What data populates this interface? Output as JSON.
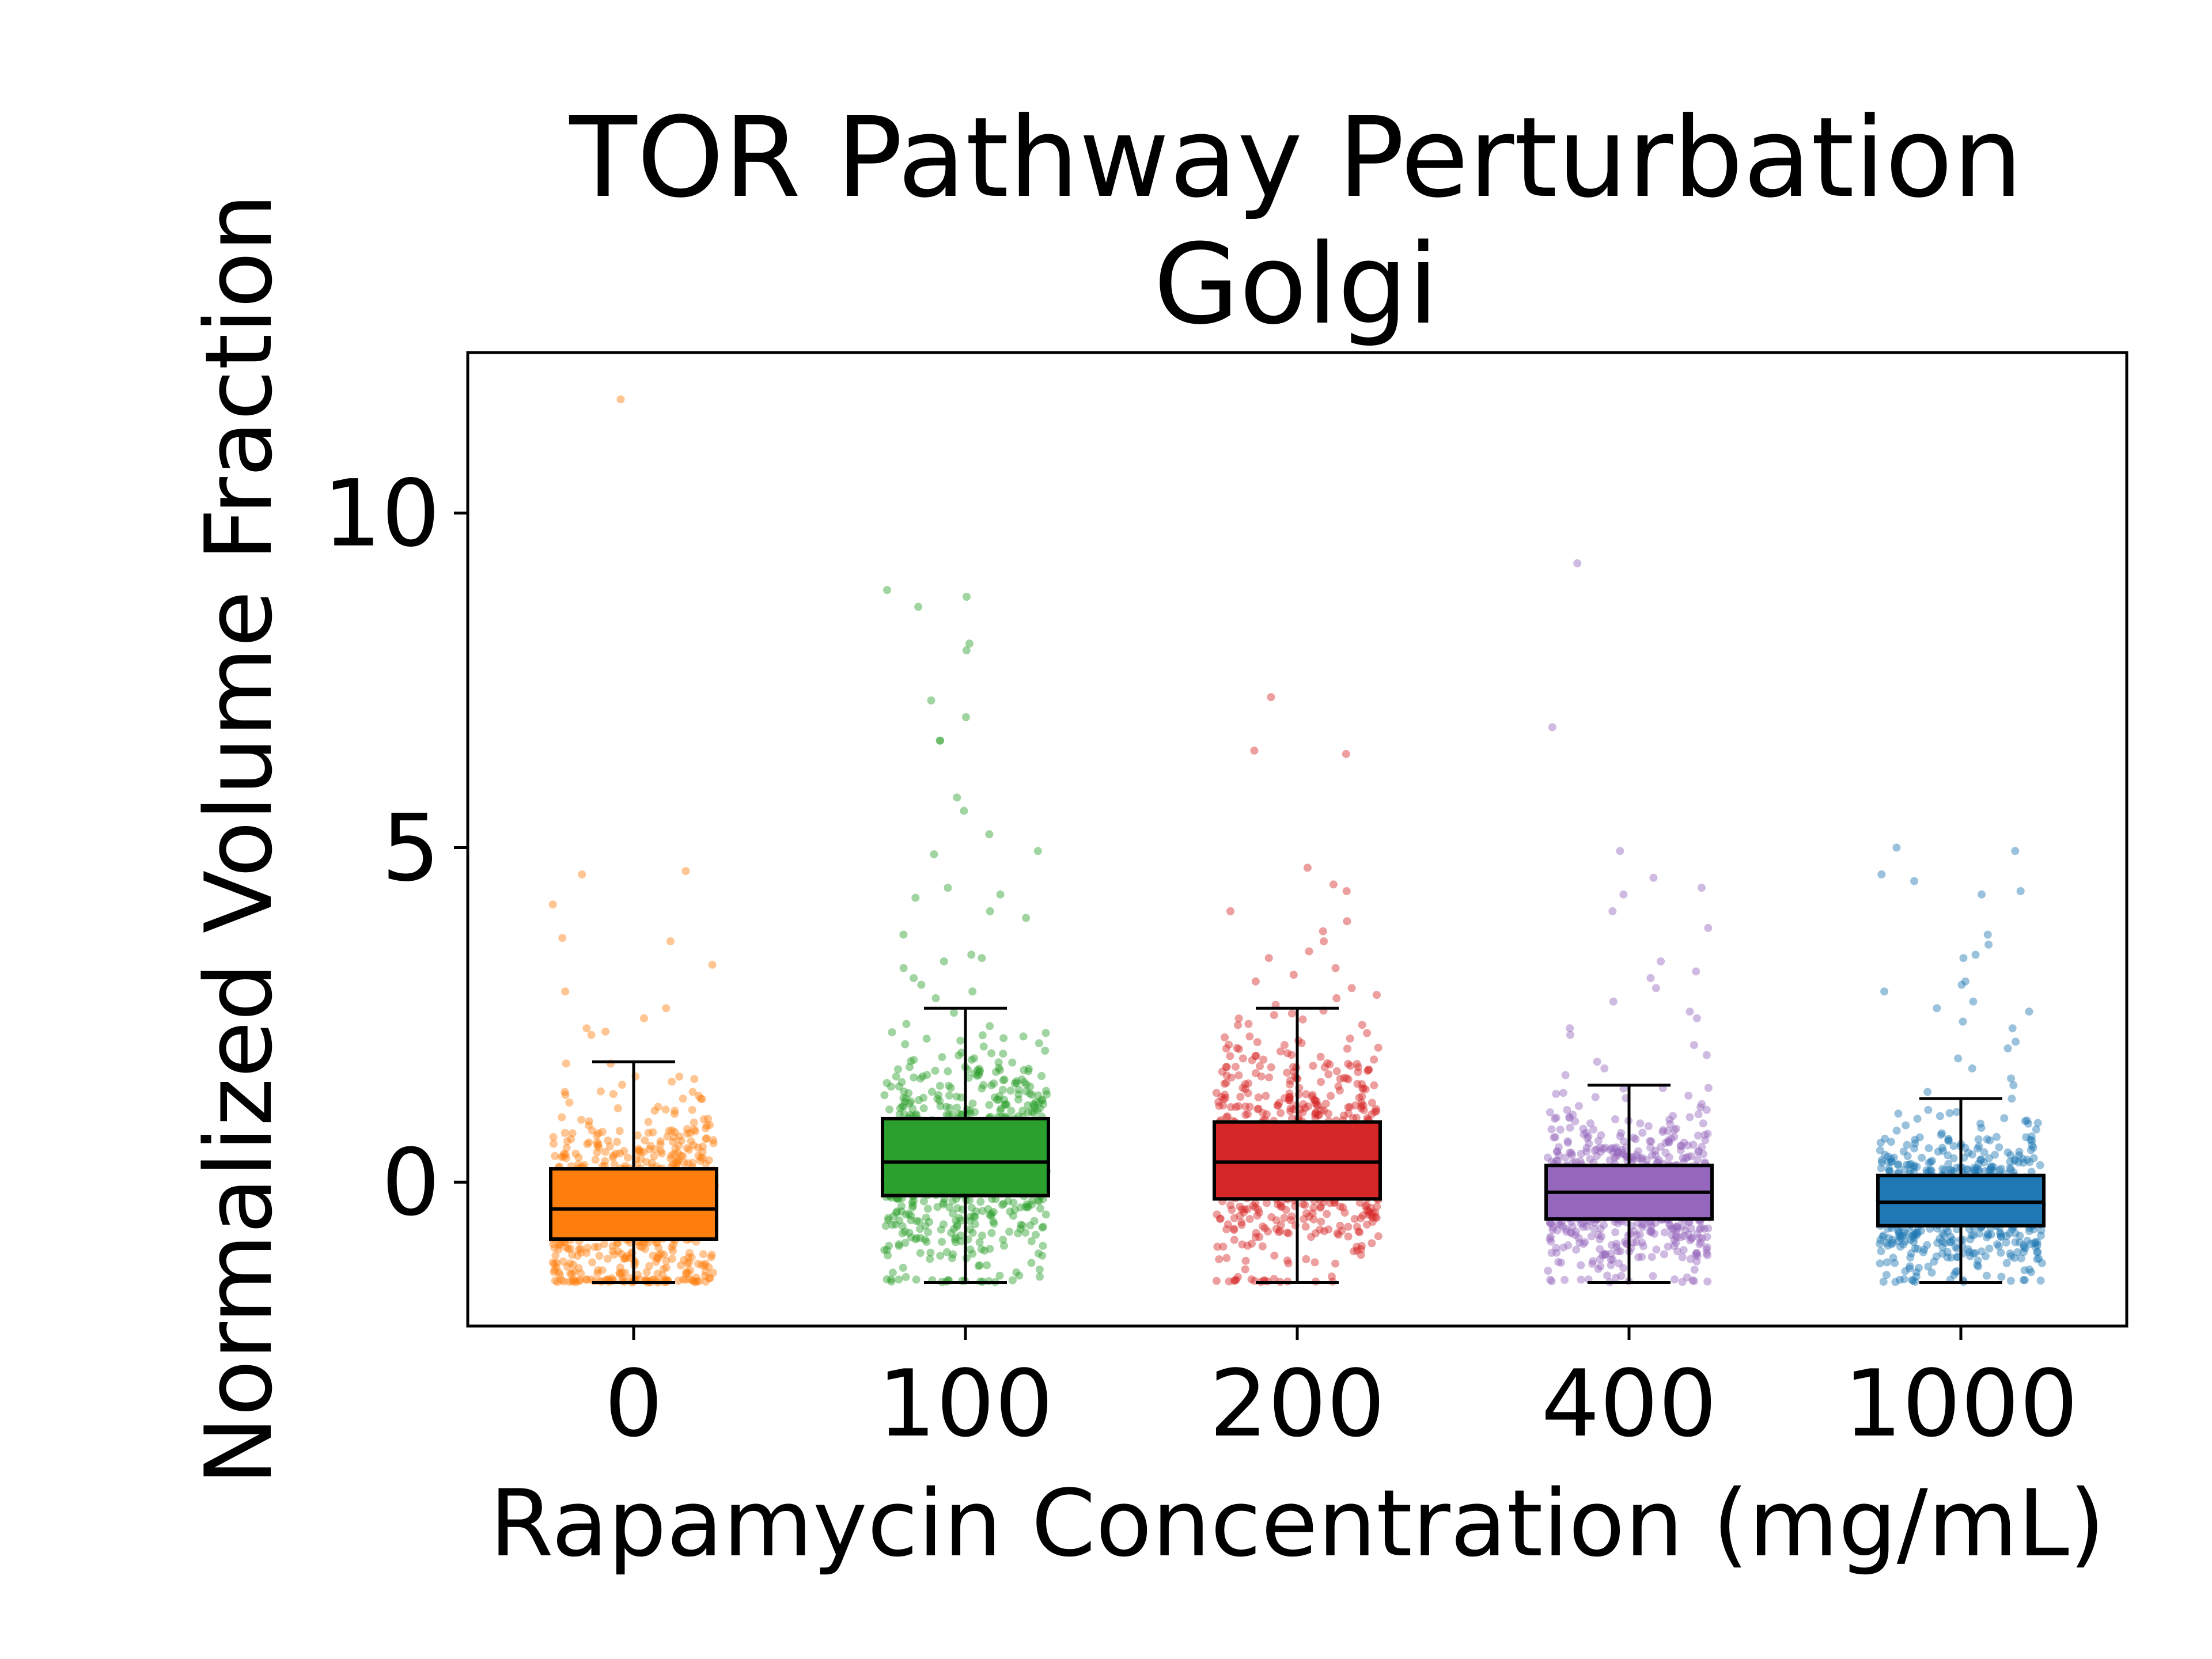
{
  "chart_data": {
    "type": "box",
    "title": "TOR Pathway Perturbation",
    "subtitle": "Golgi",
    "xlabel": "Rapamycin Concentration (mg/mL)",
    "ylabel": "Normalized Volume Fraction",
    "ylim": [
      -2.15,
      12.4
    ],
    "yticks": [
      0,
      5,
      10
    ],
    "categories": [
      "0",
      "100",
      "200",
      "400",
      "1000"
    ],
    "colors": [
      "#ff7f0e",
      "#2ca02c",
      "#d62728",
      "#9467bd",
      "#1f77b4"
    ],
    "grid": false,
    "legend": "none",
    "overlay": "jittered scatter points",
    "boxes": [
      {
        "category": "0",
        "whisker_low": -1.5,
        "q1": -0.85,
        "median": -0.4,
        "q3": 0.2,
        "whisker_high": 1.8,
        "outliers": [
          11.7,
          4.65,
          4.6,
          4.15,
          3.65,
          3.6,
          3.25,
          2.85,
          2.6,
          2.45,
          2.3,
          2.25,
          2.2
        ]
      },
      {
        "category": "100",
        "whisker_low": -1.5,
        "q1": -0.2,
        "median": 0.3,
        "q3": 0.95,
        "whisker_high": 2.6,
        "outliers": [
          8.85,
          8.75,
          8.6,
          8.05,
          7.95,
          7.2,
          6.95,
          6.6,
          6.6,
          5.75,
          5.55,
          5.2,
          4.95,
          4.9,
          4.4,
          4.3,
          4.25,
          4.05,
          3.95,
          3.7,
          3.4,
          3.35,
          3.3,
          3.2,
          3.05,
          2.95,
          2.85,
          2.75
        ]
      },
      {
        "category": "200",
        "whisker_low": -1.5,
        "q1": -0.25,
        "median": 0.3,
        "q3": 0.9,
        "whisker_high": 2.6,
        "outliers": [
          7.25,
          6.45,
          6.4,
          4.7,
          4.45,
          4.35,
          4.05,
          3.9,
          3.75,
          3.6,
          3.45,
          3.35,
          3.2,
          3.1,
          3.0,
          2.9,
          2.8,
          2.75,
          2.65
        ]
      },
      {
        "category": "400",
        "whisker_low": -1.5,
        "q1": -0.55,
        "median": -0.15,
        "q3": 0.25,
        "whisker_high": 1.45,
        "outliers": [
          9.25,
          6.8,
          4.95,
          4.55,
          4.4,
          4.3,
          4.05,
          3.8,
          3.3,
          3.15,
          3.05,
          2.9,
          2.7,
          2.55,
          2.45,
          2.3,
          2.2,
          2.05,
          1.9,
          1.8,
          1.7,
          1.6
        ]
      },
      {
        "category": "1000",
        "whisker_low": -1.5,
        "q1": -0.65,
        "median": -0.3,
        "q3": 0.1,
        "whisker_high": 1.25,
        "outliers": [
          5.0,
          4.95,
          4.6,
          4.5,
          4.35,
          4.3,
          3.7,
          3.55,
          3.4,
          3.35,
          3.0,
          2.95,
          2.85,
          2.7,
          2.6,
          2.55,
          2.4,
          2.3,
          2.1,
          2.0,
          1.85,
          1.7,
          1.55,
          1.45,
          1.35
        ]
      }
    ]
  }
}
